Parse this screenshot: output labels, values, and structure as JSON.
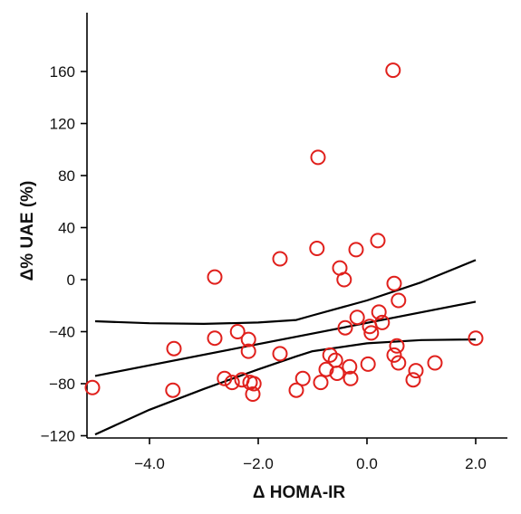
{
  "chart_data": {
    "type": "scatter",
    "xlabel": "Δ HOMA-IR",
    "ylabel": "Δ% UAE (%)",
    "xlim": [
      -5.2,
      2.2
    ],
    "ylim": [
      -120,
      200
    ],
    "x_ticks": [
      -4.0,
      -2.0,
      0.0,
      2.0
    ],
    "x_tick_labels": [
      "−4.0",
      "−2.0",
      "0.0",
      "2.0"
    ],
    "y_ticks": [
      -120,
      -80,
      -40,
      0,
      40,
      80,
      120,
      160
    ],
    "y_tick_labels": [
      "−120",
      "−80",
      "−40",
      "0",
      "40",
      "80",
      "120",
      "160"
    ],
    "grid": false,
    "point_color": "#e0201c",
    "points": [
      {
        "x": -5.05,
        "y": -83
      },
      {
        "x": -3.55,
        "y": -53
      },
      {
        "x": -3.57,
        "y": -85
      },
      {
        "x": -2.8,
        "y": 2
      },
      {
        "x": -2.8,
        "y": -45
      },
      {
        "x": -2.62,
        "y": -76
      },
      {
        "x": -2.48,
        "y": -79
      },
      {
        "x": -2.38,
        "y": -40
      },
      {
        "x": -2.3,
        "y": -77
      },
      {
        "x": -2.18,
        "y": -46
      },
      {
        "x": -2.18,
        "y": -55
      },
      {
        "x": -2.15,
        "y": -79
      },
      {
        "x": -2.08,
        "y": -80
      },
      {
        "x": -2.1,
        "y": -88
      },
      {
        "x": -1.6,
        "y": 16
      },
      {
        "x": -1.6,
        "y": -57
      },
      {
        "x": -1.3,
        "y": -85
      },
      {
        "x": -1.18,
        "y": -76
      },
      {
        "x": -0.9,
        "y": 94
      },
      {
        "x": -0.92,
        "y": 24
      },
      {
        "x": -0.85,
        "y": -79
      },
      {
        "x": -0.75,
        "y": -69
      },
      {
        "x": -0.68,
        "y": -58
      },
      {
        "x": -0.58,
        "y": -62
      },
      {
        "x": -0.55,
        "y": -72
      },
      {
        "x": -0.5,
        "y": 9
      },
      {
        "x": -0.42,
        "y": 0
      },
      {
        "x": -0.4,
        "y": -37
      },
      {
        "x": -0.32,
        "y": -67
      },
      {
        "x": -0.3,
        "y": -76
      },
      {
        "x": -0.2,
        "y": 23
      },
      {
        "x": -0.18,
        "y": -29
      },
      {
        "x": 0.02,
        "y": -65
      },
      {
        "x": 0.05,
        "y": -36
      },
      {
        "x": 0.08,
        "y": -41
      },
      {
        "x": 0.2,
        "y": 30
      },
      {
        "x": 0.22,
        "y": -25
      },
      {
        "x": 0.28,
        "y": -33
      },
      {
        "x": 0.48,
        "y": 161
      },
      {
        "x": 0.5,
        "y": -3
      },
      {
        "x": 0.5,
        "y": -58
      },
      {
        "x": 0.55,
        "y": -51
      },
      {
        "x": 0.58,
        "y": -16
      },
      {
        "x": 0.58,
        "y": -64
      },
      {
        "x": 0.85,
        "y": -77
      },
      {
        "x": 0.9,
        "y": -70
      },
      {
        "x": 1.25,
        "y": -64
      },
      {
        "x": 2.0,
        "y": -45
      }
    ],
    "lines": [
      {
        "role": "upper-confidence",
        "x": [
          -5.0,
          -4.0,
          -3.0,
          -2.0,
          -1.3,
          -1.0,
          0.0,
          1.0,
          2.0
        ],
        "y": [
          -32,
          -33.5,
          -34,
          -33,
          -31,
          -27.5,
          -16,
          -2,
          15
        ]
      },
      {
        "role": "regression",
        "x": [
          -5.0,
          2.0
        ],
        "y": [
          -74,
          -17
        ]
      },
      {
        "role": "lower-confidence",
        "x": [
          -5.0,
          -4.0,
          -3.0,
          -2.0,
          -1.3,
          -1.0,
          0.0,
          1.0,
          2.0
        ],
        "y": [
          -119,
          -100,
          -84,
          -69,
          -59,
          -55,
          -49,
          -46.5,
          -46
        ]
      }
    ]
  }
}
